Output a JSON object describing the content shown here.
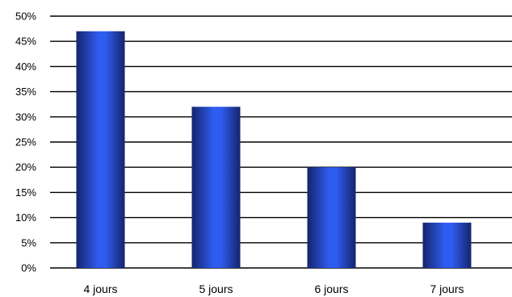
{
  "chart_data": {
    "type": "bar",
    "title": "",
    "xlabel": "",
    "ylabel": "",
    "categories": [
      "4 jours",
      "5 jours",
      "6 jours",
      "7 jours"
    ],
    "values": [
      47,
      32,
      20,
      9
    ],
    "ylim": [
      0,
      50
    ],
    "yticks": [
      0,
      5,
      10,
      15,
      20,
      25,
      30,
      35,
      40,
      45,
      50
    ],
    "ytick_labels": [
      "0%",
      "5%",
      "10%",
      "15%",
      "20%",
      "25%",
      "30%",
      "35%",
      "40%",
      "45%",
      "50%"
    ],
    "grid": true,
    "legend": "none",
    "bar_color": "#2f5cf0",
    "bar_edge_color": "#14246e"
  }
}
